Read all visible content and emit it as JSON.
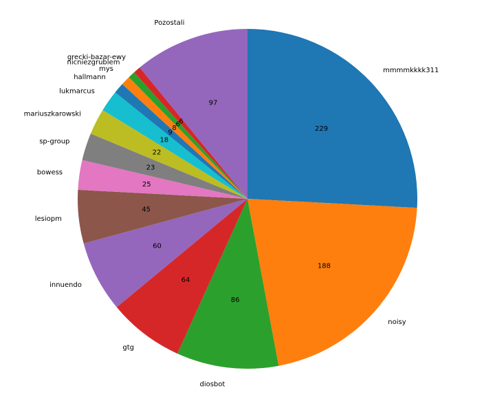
{
  "chart_data": {
    "type": "pie",
    "title": "",
    "start_angle_deg": 90,
    "direction": "clockwise",
    "slices": [
      {
        "label": "mmmmkkkk311",
        "value": 229,
        "color": "#1f77b4"
      },
      {
        "label": "noisy",
        "value": 188,
        "color": "#ff7f0e"
      },
      {
        "label": "diosbot",
        "value": 86,
        "color": "#2ca02c"
      },
      {
        "label": "gtg",
        "value": 64,
        "color": "#d62728"
      },
      {
        "label": "innuendo",
        "value": 60,
        "color": "#9467bd"
      },
      {
        "label": "lesiopm",
        "value": 45,
        "color": "#8c564b"
      },
      {
        "label": "bowess",
        "value": 25,
        "color": "#e377c2"
      },
      {
        "label": "sp-group",
        "value": 23,
        "color": "#7f7f7f"
      },
      {
        "label": "mariuszkarowski",
        "value": 22,
        "color": "#bcbd22"
      },
      {
        "label": "lukmarcus",
        "value": 18,
        "color": "#17becf"
      },
      {
        "label": "hallmann",
        "value": 9,
        "color": "#1f77b4"
      },
      {
        "label": "mys",
        "value": 8,
        "color": "#ff7f0e"
      },
      {
        "label": "nicniezgrublem",
        "value": 6,
        "color": "#2ca02c"
      },
      {
        "label": "grecki-bazar-ewy",
        "value": 6,
        "color": "#d62728"
      },
      {
        "label": "Pozostali",
        "value": 97,
        "color": "#9467bd"
      }
    ]
  }
}
